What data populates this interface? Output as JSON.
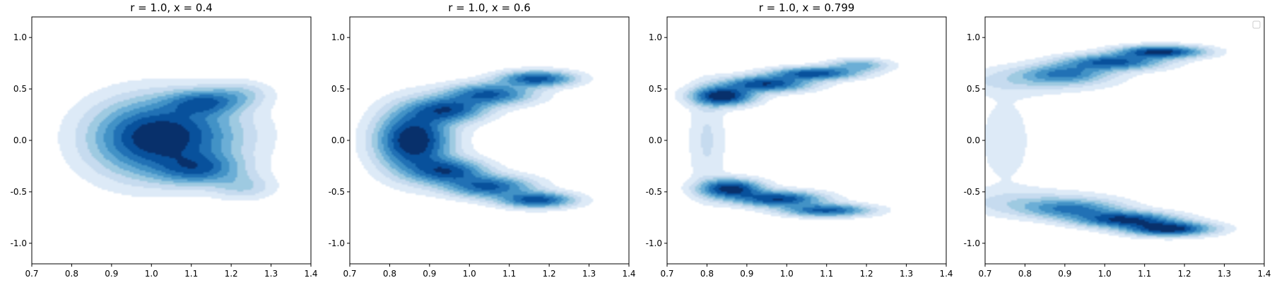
{
  "chart_data": [
    {
      "type": "kde",
      "title": "r = 1.0, x = 0.4",
      "xlim": [
        0.7,
        1.4
      ],
      "ylim": [
        -1.2,
        1.2
      ],
      "xticks": [
        "0.7",
        "0.8",
        "0.9",
        "1.0",
        "1.1",
        "1.2",
        "1.3",
        "1.4"
      ],
      "yticks": [
        "1.0",
        "0.5",
        "0.0",
        "-0.5",
        "-1.0"
      ],
      "colormap": "Blues",
      "density_blobs": [
        {
          "x": 1.06,
          "y": 0.05,
          "sx": 0.11,
          "sy": 0.22,
          "w": 1.0
        },
        {
          "x": 1.13,
          "y": 0.37,
          "sx": 0.06,
          "sy": 0.08,
          "w": 0.75
        },
        {
          "x": 1.12,
          "y": -0.28,
          "sx": 0.07,
          "sy": 0.1,
          "w": 0.75
        },
        {
          "x": 0.97,
          "y": 0.0,
          "sx": 0.09,
          "sy": 0.25,
          "w": 0.55
        },
        {
          "x": 1.22,
          "y": 0.45,
          "sx": 0.05,
          "sy": 0.08,
          "w": 0.3
        },
        {
          "x": 1.23,
          "y": -0.45,
          "sx": 0.05,
          "sy": 0.08,
          "w": 0.3
        }
      ]
    },
    {
      "type": "kde",
      "title": "r = 1.0, x = 0.6",
      "xlim": [
        0.7,
        1.4
      ],
      "ylim": [
        -1.2,
        1.2
      ],
      "xticks": [
        "0.7",
        "0.8",
        "0.9",
        "1.0",
        "1.1",
        "1.2",
        "1.3",
        "1.4"
      ],
      "yticks": [
        "1.0",
        "0.5",
        "0.0",
        "-0.5",
        "-1.0"
      ],
      "colormap": "Blues",
      "density_blobs": [
        {
          "x": 0.86,
          "y": 0.0,
          "sx": 0.06,
          "sy": 0.2,
          "w": 1.0
        },
        {
          "x": 0.95,
          "y": 0.3,
          "sx": 0.06,
          "sy": 0.08,
          "w": 0.7
        },
        {
          "x": 1.05,
          "y": 0.45,
          "sx": 0.07,
          "sy": 0.07,
          "w": 0.7
        },
        {
          "x": 1.17,
          "y": 0.6,
          "sx": 0.06,
          "sy": 0.05,
          "w": 0.75
        },
        {
          "x": 0.95,
          "y": -0.3,
          "sx": 0.06,
          "sy": 0.08,
          "w": 0.7
        },
        {
          "x": 1.05,
          "y": -0.45,
          "sx": 0.07,
          "sy": 0.07,
          "w": 0.7
        },
        {
          "x": 1.17,
          "y": -0.58,
          "sx": 0.06,
          "sy": 0.05,
          "w": 0.75
        }
      ]
    },
    {
      "type": "kde",
      "title": "r = 1.0, x = 0.799",
      "xlim": [
        0.7,
        1.4
      ],
      "ylim": [
        -1.2,
        1.2
      ],
      "xticks": [
        "0.7",
        "0.8",
        "0.9",
        "1.0",
        "1.1",
        "1.2",
        "1.3",
        "1.4"
      ],
      "yticks": [
        "1.0",
        "0.5",
        "0.0",
        "-0.5",
        "-1.0"
      ],
      "colormap": "Blues",
      "density_blobs": [
        {
          "x": 0.84,
          "y": 0.43,
          "sx": 0.05,
          "sy": 0.06,
          "w": 1.0
        },
        {
          "x": 0.95,
          "y": 0.55,
          "sx": 0.07,
          "sy": 0.05,
          "w": 0.85
        },
        {
          "x": 1.07,
          "y": 0.65,
          "sx": 0.07,
          "sy": 0.04,
          "w": 0.8
        },
        {
          "x": 1.18,
          "y": 0.73,
          "sx": 0.05,
          "sy": 0.04,
          "w": 0.4
        },
        {
          "x": 0.86,
          "y": -0.47,
          "sx": 0.05,
          "sy": 0.06,
          "w": 0.95
        },
        {
          "x": 0.98,
          "y": -0.57,
          "sx": 0.07,
          "sy": 0.05,
          "w": 0.85
        },
        {
          "x": 1.1,
          "y": -0.68,
          "sx": 0.07,
          "sy": 0.04,
          "w": 0.75
        },
        {
          "x": 0.8,
          "y": 0.0,
          "sx": 0.03,
          "sy": 0.35,
          "w": 0.15
        }
      ]
    },
    {
      "type": "kde",
      "title": "",
      "xlim": [
        0.7,
        1.4
      ],
      "ylim": [
        -1.2,
        1.2
      ],
      "xticks": [
        "0.7",
        "0.8",
        "0.9",
        "1.0",
        "1.1",
        "1.2",
        "1.3",
        "1.4"
      ],
      "yticks": [
        "1.0",
        "0.5",
        "0.0",
        "-0.5",
        "-1.0"
      ],
      "colormap": "Blues",
      "legend": "top-right (empty)",
      "density_blobs": [
        {
          "x": 0.9,
          "y": 0.65,
          "sx": 0.07,
          "sy": 0.06,
          "w": 0.55
        },
        {
          "x": 1.02,
          "y": 0.76,
          "sx": 0.08,
          "sy": 0.05,
          "w": 0.8
        },
        {
          "x": 1.14,
          "y": 0.86,
          "sx": 0.07,
          "sy": 0.04,
          "w": 0.95
        },
        {
          "x": 0.82,
          "y": 0.58,
          "sx": 0.12,
          "sy": 0.08,
          "w": 0.2
        },
        {
          "x": 0.92,
          "y": -0.67,
          "sx": 0.08,
          "sy": 0.06,
          "w": 0.55
        },
        {
          "x": 1.05,
          "y": -0.77,
          "sx": 0.08,
          "sy": 0.05,
          "w": 0.9
        },
        {
          "x": 1.16,
          "y": -0.86,
          "sx": 0.07,
          "sy": 0.045,
          "w": 1.0
        },
        {
          "x": 0.82,
          "y": -0.6,
          "sx": 0.12,
          "sy": 0.08,
          "w": 0.2
        },
        {
          "x": 0.75,
          "y": 0.0,
          "sx": 0.06,
          "sy": 0.4,
          "w": 0.08
        }
      ]
    }
  ]
}
